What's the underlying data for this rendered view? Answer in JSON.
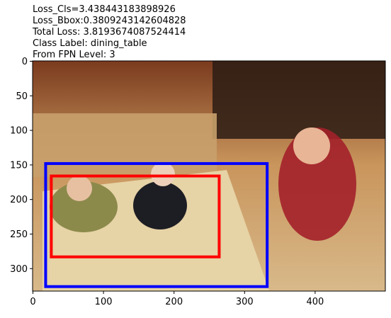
{
  "header": {
    "lines": [
      "Loss_Cls=3.438443183898926",
      "Loss_Bbox:0.3809243142604828",
      "Total Loss: 3.8193674087524414",
      "Class Label: dining_table",
      "From FPN Level: 3"
    ]
  },
  "chart_data": {
    "type": "image_with_boxes",
    "image_description": "photo",
    "x_ticks": [
      0,
      100,
      200,
      300,
      400
    ],
    "y_ticks": [
      0,
      50,
      100,
      150,
      200,
      250,
      300
    ],
    "xlim": [
      -0.5,
      499.5
    ],
    "ylim": [
      332.5,
      -0.5
    ],
    "boxes": [
      {
        "label": "blue",
        "color": "#0000ff",
        "x0": 18,
        "y0": 148,
        "x1": 332,
        "y1": 326
      },
      {
        "label": "red",
        "color": "#ff0000",
        "x0": 26,
        "y0": 166,
        "x1": 264,
        "y1": 283
      }
    ]
  }
}
